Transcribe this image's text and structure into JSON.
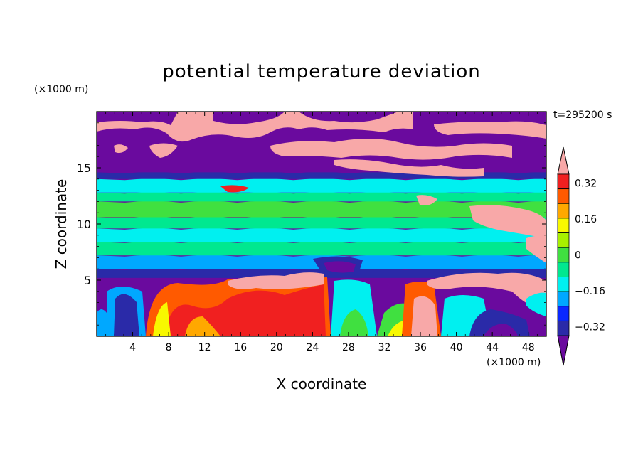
{
  "chart_data": {
    "type": "heatmap",
    "title": "potential temperature deviation",
    "xlabel": "X coordinate",
    "ylabel": "Z coordinate",
    "x_unit": "(×1000 m)",
    "z_unit": "(×1000 m)",
    "time_label": "t=295200 s",
    "xlim": [
      0,
      50
    ],
    "zlim": [
      0,
      20
    ],
    "x_ticks": [
      4,
      8,
      12,
      16,
      20,
      24,
      28,
      32,
      36,
      40,
      44,
      48
    ],
    "x_tick_labels": [
      "4",
      "8",
      "12",
      "16",
      "20",
      "24",
      "28",
      "32",
      "36",
      "40",
      "44",
      "48"
    ],
    "z_ticks": [
      5,
      10,
      15
    ],
    "z_tick_labels": [
      "5",
      "10",
      "15"
    ],
    "colorbar": {
      "levels": [
        -0.4,
        -0.32,
        -0.24,
        -0.16,
        -0.08,
        0,
        0.08,
        0.16,
        0.24,
        0.32,
        0.4
      ],
      "labels": [
        "0.32",
        "0.16",
        "0",
        "−0.16",
        "−0.32"
      ],
      "label_values": [
        0.32,
        0.16,
        0,
        -0.16,
        -0.32
      ],
      "colors": [
        "#6a0a9e",
        "#2a2aa8",
        "#0a28ff",
        "#00a8ff",
        "#00f0f0",
        "#00e890",
        "#40e040",
        "#a8f000",
        "#f8f800",
        "#ffa800",
        "#ff5a00",
        "#f02020",
        "#f8a8a8"
      ]
    },
    "bands": [
      {
        "z": [
          0,
          5.2
        ],
        "value": "mixed, mostly positive",
        "color": "#ff5a00"
      },
      {
        "z": [
          5.2,
          6
        ],
        "value": -0.32,
        "color": "#2a2aa8"
      },
      {
        "z": [
          6,
          7.2
        ],
        "value": -0.16,
        "color": "#00a8ff"
      },
      {
        "z": [
          7.2,
          8.4
        ],
        "value": 0,
        "color": "#00e890"
      },
      {
        "z": [
          8.4,
          9.6
        ],
        "value": -0.08,
        "color": "#00f0f0"
      },
      {
        "z": [
          9.6,
          10.6
        ],
        "value": 0,
        "color": "#00e890"
      },
      {
        "z": [
          10.6,
          12.0
        ],
        "value": 0.08,
        "color": "#40e040"
      },
      {
        "z": [
          12.0,
          12.8
        ],
        "value": 0,
        "color": "#00e890"
      },
      {
        "z": [
          12.8,
          14.0
        ],
        "value": -0.16,
        "color": "#00f0f0"
      },
      {
        "z": [
          14.0,
          14.6
        ],
        "value": -0.32,
        "color": "#2a2aa8"
      },
      {
        "z": [
          14.6,
          20
        ],
        "value": -0.4,
        "color": "#6a0a9e"
      }
    ]
  }
}
